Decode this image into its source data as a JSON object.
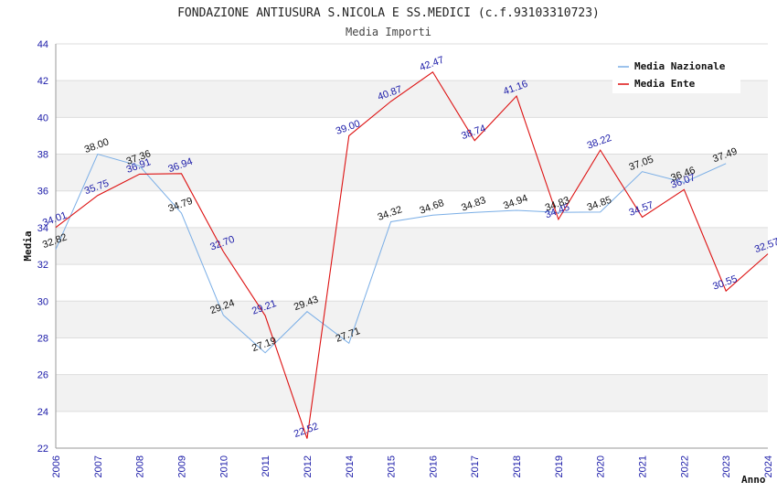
{
  "chart_data": {
    "type": "line",
    "title": "FONDAZIONE ANTIUSURA S.NICOLA E SS.MEDICI (c.f.93103310723)",
    "subtitle": "Media Importi",
    "xlabel": "Anno",
    "ylabel": "Media",
    "ylim": [
      22,
      44
    ],
    "yticks": [
      "22",
      "24",
      "26",
      "28",
      "30",
      "32",
      "34",
      "36",
      "38",
      "40",
      "42",
      "44"
    ],
    "categories": [
      "2006",
      "2007",
      "2008",
      "2009",
      "2010",
      "2011",
      "2012",
      "2014",
      "2015",
      "2016",
      "2017",
      "2018",
      "2019",
      "2020",
      "2021",
      "2022",
      "2023",
      "2024"
    ],
    "grid": true,
    "legend_position": "top-right",
    "series": [
      {
        "name": "Media Nazionale",
        "color": "#7aaee6",
        "values": [
          32.82,
          38.0,
          37.36,
          34.79,
          29.24,
          27.19,
          29.43,
          27.71,
          34.32,
          34.68,
          34.83,
          34.94,
          34.83,
          34.85,
          37.05,
          36.46,
          37.49,
          null
        ],
        "labels": [
          "32.82",
          "38.00",
          "37.36",
          "34.79",
          "29.24",
          "27.19",
          "29.43",
          "27.71",
          "34.32",
          "34.68",
          "34.83",
          "34.94",
          "34.83",
          "34.85",
          "37.05",
          "36.46",
          "37.49",
          ""
        ]
      },
      {
        "name": "Media Ente",
        "color": "#dd1111",
        "values": [
          34.01,
          35.75,
          36.91,
          36.94,
          32.7,
          29.21,
          22.52,
          39.0,
          40.87,
          42.47,
          38.74,
          41.16,
          34.45,
          38.22,
          34.57,
          36.07,
          30.55,
          32.57
        ],
        "labels": [
          "34.01",
          "35.75",
          "36.91",
          "36.94",
          "32.70",
          "29.21",
          "22.52",
          "39.00",
          "40.87",
          "42.47",
          "38.74",
          "41.16",
          "34.45",
          "38.22",
          "34.57",
          "36.07",
          "30.55",
          "32.57"
        ]
      }
    ]
  }
}
